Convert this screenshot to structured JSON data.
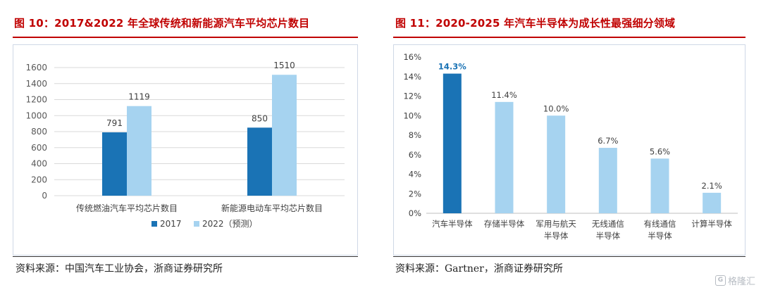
{
  "left": {
    "title": "图 10：2017&2022 年全球传统和新能源汽车平均芯片数目",
    "source": "资料来源：中国汽车工业协会，浙商证券研究所"
  },
  "right": {
    "title": "图 11：2020-2025 年汽车半导体为成长性最强细分领域",
    "source": "资料来源：Gartner，浙商证券研究所"
  },
  "watermark": {
    "text": "格隆汇",
    "icon": "g-logo-icon"
  },
  "chart_data": [
    {
      "type": "bar",
      "title": "",
      "categories": [
        "传统燃油汽车平均芯片数目",
        "新能源电动车平均芯片数目"
      ],
      "series": [
        {
          "name": "2017",
          "values": [
            791,
            850
          ],
          "color": "#1a73b5"
        },
        {
          "name": "2022（预测）",
          "values": [
            1119,
            1510
          ],
          "color": "#a6d3f0"
        }
      ],
      "ylim": [
        0,
        1600
      ],
      "yticks": [
        0,
        200,
        400,
        600,
        800,
        1000,
        1200,
        1400,
        1600
      ],
      "grid": true,
      "legend": "bottom"
    },
    {
      "type": "bar",
      "title": "",
      "categories": [
        [
          "汽车半导体"
        ],
        [
          "存储半导体"
        ],
        [
          "军用与航天",
          "半导体"
        ],
        [
          "无线通信",
          "半导体"
        ],
        [
          "有线通信",
          "半导体"
        ],
        [
          "计算半导体"
        ]
      ],
      "values": [
        14.3,
        11.4,
        10.0,
        6.7,
        5.6,
        2.1
      ],
      "labels": [
        "14.3%",
        "11.4%",
        "10.0%",
        "6.7%",
        "5.6%",
        "2.1%"
      ],
      "highlight_index": 0,
      "colors": {
        "highlight": "#1a73b5",
        "normal": "#a6d3f0",
        "highlight_label": "#1a73b5"
      },
      "ylim": [
        0,
        16
      ],
      "yticks": [
        "0%",
        "2%",
        "4%",
        "6%",
        "8%",
        "10%",
        "12%",
        "14%",
        "16%"
      ],
      "grid": false,
      "legend": "none"
    }
  ]
}
